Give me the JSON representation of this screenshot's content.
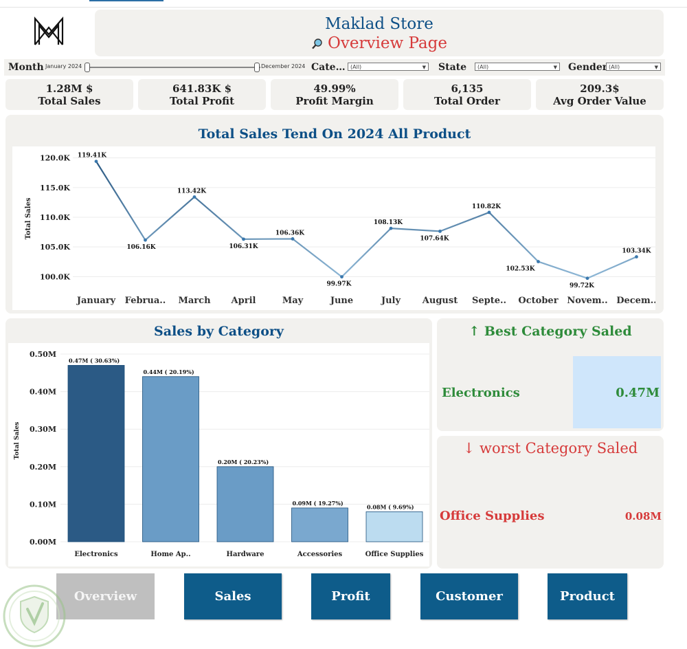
{
  "header": {
    "store_title": "Maklad Store",
    "page_title": "Overview Page",
    "logo_icon": "mm-logo-icon",
    "page_icon": "magnifier-icon"
  },
  "filters": {
    "month_label": "Month",
    "month_start": "January 2024",
    "month_end": "December 2024",
    "category_label": "Cate…",
    "category_value": "(All)",
    "state_label": "State",
    "state_value": "(All)",
    "gender_label": "Gender",
    "gender_value": "(All)"
  },
  "kpis": [
    {
      "value": "1.28M $",
      "label": "Total Sales"
    },
    {
      "value": "641.83K $",
      "label": "Total Profit"
    },
    {
      "value": "49.99%",
      "label": "Profit Margin"
    },
    {
      "value": "6,135",
      "label": "Total Order"
    },
    {
      "value": "209.3$",
      "label": "Avg Order Value"
    }
  ],
  "best": {
    "title": "↑ Best Category Saled",
    "name": "Electronics",
    "value": "0.47M"
  },
  "worst": {
    "title": "↓ worst Category Saled",
    "name": "Office Supplies",
    "value": "0.08M"
  },
  "nav": [
    "Overview",
    "Sales",
    "Profit",
    "Customer",
    "Product"
  ],
  "colors": {
    "title_blue": "#0d4f86",
    "accent_red": "#d63a3a",
    "accent_green": "#2e8b3a",
    "nav_blue": "#0e5c8a",
    "panel_bg": "#f2f1ee"
  },
  "chart_data": [
    {
      "type": "line",
      "title": "Total Sales Tend On 2024 All Product",
      "ylabel": "Total Sales",
      "xlabel": "",
      "ylim": [
        99000,
        121000
      ],
      "yticks": [
        100000,
        105000,
        110000,
        115000,
        120000
      ],
      "ytick_labels": [
        "100.0K",
        "105.0K",
        "110.0K",
        "115.0K",
        "120.0K"
      ],
      "categories": [
        "January",
        "Februa..",
        "March",
        "April",
        "May",
        "June",
        "July",
        "August",
        "Septe..",
        "October",
        "Novem..",
        "Decem.."
      ],
      "values": [
        119410,
        106160,
        113420,
        106310,
        106360,
        99970,
        108130,
        107640,
        110820,
        102530,
        99720,
        103340
      ],
      "data_labels": [
        "119.41K",
        "106.16K",
        "113.42K",
        "106.31K",
        "106.36K",
        "99.97K",
        "108.13K",
        "107.64K",
        "110.82K",
        "102.53K",
        "99.72K",
        "103.34K"
      ],
      "grid": true
    },
    {
      "type": "bar",
      "title": "Sales by Category",
      "ylabel": "Total Sales",
      "xlabel": "",
      "ylim": [
        0,
        0.5
      ],
      "yticks": [
        0,
        0.1,
        0.2,
        0.3,
        0.4,
        0.5
      ],
      "ytick_labels": [
        "0.00M",
        "0.10M",
        "0.20M",
        "0.30M",
        "0.40M",
        "0.50M"
      ],
      "categories": [
        "Electronics",
        "Home Ap..",
        "Hardware",
        "Accessories",
        "Office Supplies"
      ],
      "values": [
        0.47,
        0.44,
        0.2,
        0.09,
        0.08
      ],
      "data_labels": [
        "0.47M ( 30.63%)",
        "0.44M ( 20.19%)",
        "0.20M ( 20.23%)",
        "0.09M ( 19.27%)",
        "0.08M ( 9.69%)"
      ],
      "colors": [
        "#2b5a85",
        "#6a9cc6",
        "#6a9cc6",
        "#7aa8cf",
        "#bcdcf0"
      ],
      "grid": true
    }
  ]
}
